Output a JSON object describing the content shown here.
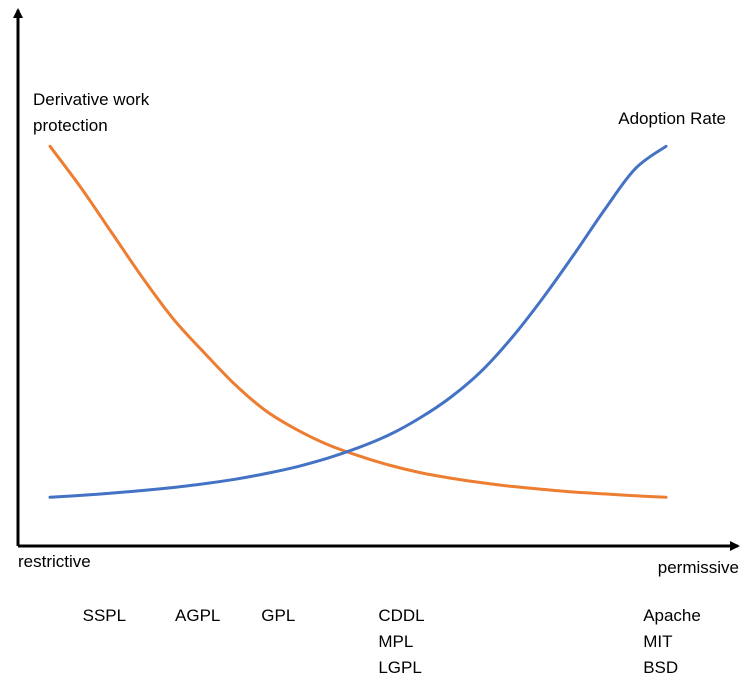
{
  "chart_data": {
    "type": "line",
    "xlabel_left": "restrictive",
    "xlabel_right": "permissive",
    "xlim": [
      0,
      1
    ],
    "ylim": [
      0,
      1
    ],
    "grid": false,
    "series": [
      {
        "name": "Derivative work protection",
        "name_lines": [
          "Derivative work",
          "protection"
        ],
        "color": "#ED7D31",
        "x": [
          0.0,
          0.05,
          0.1,
          0.15,
          0.2,
          0.25,
          0.3,
          0.35,
          0.4,
          0.45,
          0.5,
          0.55,
          0.6,
          0.65,
          0.7,
          0.75,
          0.8,
          0.85,
          0.9,
          0.95,
          1.0
        ],
        "y": [
          0.97,
          0.86,
          0.74,
          0.62,
          0.51,
          0.42,
          0.335,
          0.265,
          0.215,
          0.175,
          0.145,
          0.12,
          0.1,
          0.085,
          0.073,
          0.063,
          0.055,
          0.048,
          0.043,
          0.038,
          0.034
        ]
      },
      {
        "name": "Adoption Rate",
        "name_lines": [
          "Adoption Rate"
        ],
        "color": "#4472C4",
        "x": [
          0.0,
          0.05,
          0.1,
          0.15,
          0.2,
          0.25,
          0.3,
          0.35,
          0.4,
          0.45,
          0.5,
          0.55,
          0.6,
          0.65,
          0.7,
          0.75,
          0.8,
          0.85,
          0.9,
          0.95,
          1.0
        ],
        "y": [
          0.034,
          0.039,
          0.045,
          0.052,
          0.06,
          0.07,
          0.082,
          0.097,
          0.115,
          0.138,
          0.166,
          0.2,
          0.245,
          0.3,
          0.37,
          0.46,
          0.565,
          0.68,
          0.8,
          0.91,
          0.97
        ]
      }
    ],
    "categories": [
      {
        "x": 0.04,
        "labels": [
          "SSPL"
        ]
      },
      {
        "x": 0.19,
        "labels": [
          "AGPL"
        ]
      },
      {
        "x": 0.33,
        "labels": [
          "GPL"
        ]
      },
      {
        "x": 0.52,
        "labels": [
          "CDDL",
          "MPL",
          "LGPL"
        ]
      },
      {
        "x": 0.95,
        "labels": [
          "Apache",
          "MIT",
          "BSD"
        ]
      }
    ]
  }
}
